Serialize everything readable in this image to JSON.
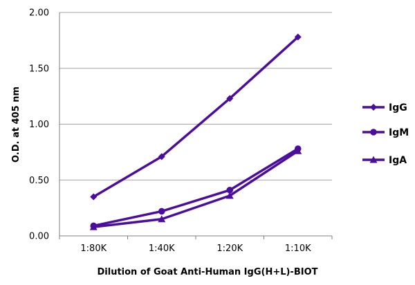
{
  "colors": {
    "series": "#4B0D9C",
    "grid": "#A6A6A6",
    "axis": "#7F7F7F",
    "text": "#000000"
  },
  "chart_data": {
    "type": "line",
    "title": "",
    "xlabel": "Dilution of Goat Anti-Human IgG(H+L)-BIOT",
    "ylabel": "O.D. at 405 nm",
    "categories": [
      "1:80K",
      "1:40K",
      "1:20K",
      "1:10K"
    ],
    "ylim": [
      0,
      2
    ],
    "yticks": [
      "0.00",
      "0.50",
      "1.00",
      "1.50",
      "2.00"
    ],
    "grid": "horizontal",
    "legend_position": "right",
    "series": [
      {
        "name": "IgG",
        "marker": "diamond",
        "values": [
          0.35,
          0.71,
          1.23,
          1.78
        ]
      },
      {
        "name": "IgM",
        "marker": "circle",
        "values": [
          0.09,
          0.22,
          0.41,
          0.78
        ]
      },
      {
        "name": "IgA",
        "marker": "triangle",
        "values": [
          0.08,
          0.15,
          0.36,
          0.76
        ]
      }
    ]
  }
}
